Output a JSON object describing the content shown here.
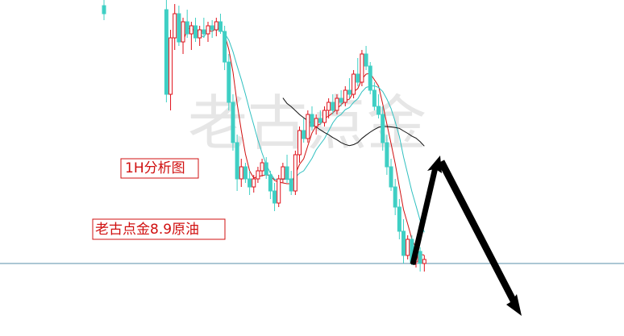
{
  "chart_data": {
    "type": "candlestick",
    "watermark": "老古点金",
    "annotations": [
      "1H分析图",
      "老古点金8.9原油"
    ],
    "up_color": "#e0101a",
    "down_color": "#3fcfc4",
    "xlim": [
      0,
      150
    ],
    "ylim": [
      0,
      417
    ],
    "level_line": 90,
    "level_color": "#5a8fa8",
    "moving_averages": [
      {
        "period": 5,
        "color": "#d01010"
      },
      {
        "period": 10,
        "color": "#30c0c0"
      },
      {
        "period": 30,
        "color": "#111111"
      }
    ],
    "x": [
      25,
      40,
      41,
      42,
      43,
      44,
      45,
      46,
      47,
      48,
      49,
      50,
      51,
      52,
      53,
      54,
      55,
      56,
      57,
      58,
      59,
      60,
      61,
      62,
      63,
      64,
      65,
      66,
      67,
      68,
      69,
      70,
      71,
      72,
      73,
      74,
      75,
      76,
      77,
      78,
      79,
      80,
      81,
      82,
      83,
      84,
      85,
      86,
      87,
      88,
      89,
      90,
      91,
      92,
      93,
      94,
      95,
      96,
      97,
      98,
      99,
      100,
      101,
      102
    ],
    "open": [
      410,
      405,
      300,
      370,
      400,
      365,
      390,
      375,
      385,
      370,
      380,
      375,
      385,
      380,
      390,
      378,
      340,
      290,
      240,
      195,
      210,
      195,
      185,
      195,
      205,
      215,
      200,
      180,
      165,
      195,
      210,
      195,
      180,
      225,
      255,
      245,
      275,
      260,
      270,
      265,
      280,
      290,
      280,
      295,
      290,
      305,
      300,
      325,
      315,
      350,
      335,
      305,
      285,
      275,
      240,
      210,
      185,
      160,
      130,
      100,
      120,
      92,
      105,
      90
    ],
    "high": [
      417,
      417,
      380,
      412,
      410,
      395,
      405,
      390,
      395,
      385,
      395,
      390,
      392,
      395,
      400,
      385,
      350,
      300,
      250,
      220,
      215,
      205,
      200,
      210,
      220,
      222,
      205,
      190,
      200,
      215,
      225,
      205,
      230,
      260,
      270,
      280,
      285,
      275,
      280,
      285,
      295,
      300,
      300,
      305,
      310,
      320,
      330,
      345,
      355,
      360,
      340,
      315,
      300,
      285,
      250,
      220,
      195,
      170,
      145,
      125,
      125,
      110,
      110,
      100
    ],
    "low": [
      392,
      290,
      280,
      355,
      360,
      350,
      370,
      355,
      365,
      360,
      370,
      365,
      370,
      372,
      375,
      330,
      280,
      230,
      180,
      185,
      190,
      175,
      178,
      190,
      198,
      195,
      170,
      155,
      160,
      190,
      190,
      175,
      175,
      215,
      240,
      240,
      255,
      250,
      262,
      260,
      270,
      275,
      275,
      285,
      285,
      295,
      295,
      310,
      310,
      330,
      300,
      280,
      270,
      230,
      200,
      180,
      150,
      120,
      90,
      95,
      88,
      85,
      80,
      80
    ],
    "close": [
      400,
      300,
      370,
      400,
      365,
      390,
      375,
      385,
      370,
      380,
      375,
      385,
      380,
      390,
      378,
      340,
      290,
      240,
      195,
      210,
      195,
      185,
      195,
      205,
      215,
      200,
      180,
      165,
      195,
      210,
      195,
      180,
      225,
      255,
      245,
      275,
      260,
      270,
      265,
      280,
      290,
      280,
      295,
      290,
      305,
      300,
      325,
      315,
      350,
      335,
      305,
      285,
      275,
      240,
      210,
      185,
      160,
      130,
      100,
      120,
      92,
      105,
      90,
      95
    ]
  }
}
